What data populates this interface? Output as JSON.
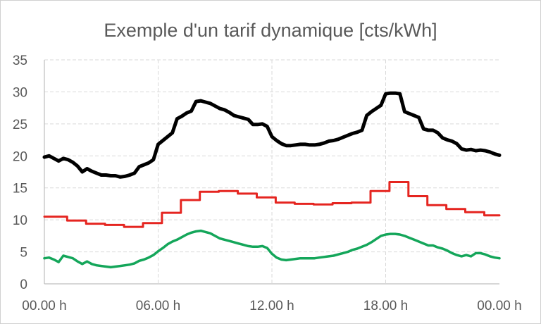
{
  "chart_data": {
    "type": "line",
    "title": "Exemple d'un tarif dynamique [cts/kWh]",
    "xlabel": "",
    "ylabel": "",
    "ylim": [
      0,
      35
    ],
    "xlim": [
      0,
      24
    ],
    "y_ticks": [
      "0",
      "5",
      "10",
      "15",
      "20",
      "25",
      "30",
      "35"
    ],
    "x_ticks": [
      {
        "x": 0,
        "label": "00.00 h"
      },
      {
        "x": 6,
        "label": "06.00 h"
      },
      {
        "x": 12,
        "label": "12.00 h"
      },
      {
        "x": 18,
        "label": "18.00 h"
      },
      {
        "x": 24,
        "label": "00.00 h"
      }
    ],
    "grid": true,
    "legend": "none",
    "series": [
      {
        "color": "#000000",
        "width": 5,
        "x": [
          0,
          0.25,
          0.5,
          0.75,
          1,
          1.25,
          1.5,
          1.75,
          2,
          2.25,
          2.5,
          2.75,
          3,
          3.25,
          3.5,
          3.75,
          4,
          4.25,
          4.5,
          4.75,
          5,
          5.25,
          5.5,
          5.75,
          6,
          6.25,
          6.5,
          6.75,
          7,
          7.25,
          7.5,
          7.75,
          8,
          8.25,
          8.5,
          8.75,
          9,
          9.25,
          9.5,
          9.75,
          10,
          10.25,
          10.5,
          10.75,
          11,
          11.25,
          11.5,
          11.75,
          12,
          12.25,
          12.5,
          12.75,
          13,
          13.25,
          13.5,
          13.75,
          14,
          14.25,
          14.5,
          14.75,
          15,
          15.25,
          15.5,
          15.75,
          16,
          16.25,
          16.5,
          16.75,
          17,
          17.25,
          17.5,
          17.75,
          18,
          18.25,
          18.5,
          18.75,
          19,
          19.25,
          19.5,
          19.75,
          20,
          20.25,
          20.5,
          20.75,
          21,
          21.25,
          21.5,
          21.75,
          22,
          22.25,
          22.5,
          22.75,
          23,
          23.25,
          23.5,
          23.75,
          24
        ],
        "y": [
          19.8,
          20.0,
          19.6,
          19.2,
          19.6,
          19.4,
          19.0,
          18.4,
          17.5,
          18.0,
          17.6,
          17.3,
          17.0,
          17.0,
          16.9,
          16.9,
          16.7,
          16.8,
          17.0,
          17.3,
          18.3,
          18.6,
          18.9,
          19.4,
          21.8,
          22.4,
          23.0,
          23.6,
          25.8,
          26.2,
          26.7,
          27.0,
          28.5,
          28.6,
          28.4,
          28.2,
          27.8,
          27.4,
          27.2,
          26.8,
          26.3,
          26.1,
          25.9,
          25.7,
          24.9,
          24.9,
          25.0,
          24.6,
          23.0,
          22.4,
          21.9,
          21.6,
          21.6,
          21.7,
          21.8,
          21.8,
          21.7,
          21.7,
          21.8,
          22.0,
          22.3,
          22.4,
          22.6,
          22.9,
          23.2,
          23.5,
          23.7,
          24.0,
          26.3,
          26.9,
          27.4,
          27.9,
          29.7,
          29.8,
          29.8,
          29.7,
          26.9,
          26.6,
          26.3,
          26.0,
          24.2,
          24.0,
          24.0,
          23.6,
          22.8,
          22.5,
          22.3,
          21.9,
          21.1,
          20.9,
          21.0,
          20.8,
          20.9,
          20.8,
          20.6,
          20.3,
          20.1
        ]
      },
      {
        "color": "#e52520",
        "width": 3,
        "x": [
          0,
          1.2,
          1.2,
          2.2,
          2.2,
          3.2,
          3.2,
          4.2,
          4.2,
          5.2,
          5.2,
          6.2,
          6.2,
          7.2,
          7.2,
          8.2,
          8.2,
          9.2,
          9.2,
          10.2,
          10.2,
          11.2,
          11.2,
          12.2,
          12.2,
          13.2,
          13.2,
          14.2,
          14.2,
          15.2,
          15.2,
          16.2,
          16.2,
          17.2,
          17.2,
          18.2,
          18.2,
          19.2,
          19.2,
          20.2,
          20.2,
          21.2,
          21.2,
          22.2,
          22.2,
          23.2,
          23.2,
          24
        ],
        "y": [
          10.5,
          10.5,
          9.9,
          9.9,
          9.4,
          9.4,
          9.2,
          9.2,
          8.9,
          8.9,
          9.5,
          9.5,
          11.1,
          11.1,
          13.1,
          13.1,
          14.4,
          14.4,
          14.5,
          14.5,
          14.1,
          14.1,
          13.5,
          13.5,
          12.7,
          12.7,
          12.5,
          12.5,
          12.4,
          12.4,
          12.6,
          12.6,
          12.7,
          12.7,
          14.5,
          14.5,
          15.9,
          15.9,
          13.7,
          13.7,
          12.3,
          12.3,
          11.7,
          11.7,
          11.2,
          11.2,
          10.7,
          10.7
        ]
      },
      {
        "color": "#14a65a",
        "width": 3.5,
        "x": [
          0,
          0.25,
          0.5,
          0.75,
          1,
          1.25,
          1.5,
          1.75,
          2,
          2.25,
          2.5,
          2.75,
          3,
          3.25,
          3.5,
          3.75,
          4,
          4.25,
          4.5,
          4.75,
          5,
          5.25,
          5.5,
          5.75,
          6,
          6.25,
          6.5,
          6.75,
          7,
          7.25,
          7.5,
          7.75,
          8,
          8.25,
          8.5,
          8.75,
          9,
          9.25,
          9.5,
          9.75,
          10,
          10.25,
          10.5,
          10.75,
          11,
          11.25,
          11.5,
          11.75,
          12,
          12.25,
          12.5,
          12.75,
          13,
          13.25,
          13.5,
          13.75,
          14,
          14.25,
          14.5,
          14.75,
          15,
          15.25,
          15.5,
          15.75,
          16,
          16.25,
          16.5,
          16.75,
          17,
          17.25,
          17.5,
          17.75,
          18,
          18.25,
          18.5,
          18.75,
          19,
          19.25,
          19.5,
          19.75,
          20,
          20.25,
          20.5,
          20.75,
          21,
          21.25,
          21.5,
          21.75,
          22,
          22.25,
          22.5,
          22.75,
          23,
          23.25,
          23.5,
          23.75,
          24
        ],
        "y": [
          4.0,
          4.1,
          3.8,
          3.4,
          4.4,
          4.2,
          4.0,
          3.5,
          3.1,
          3.5,
          3.1,
          2.9,
          2.8,
          2.7,
          2.6,
          2.7,
          2.8,
          2.9,
          3.0,
          3.2,
          3.6,
          3.8,
          4.1,
          4.5,
          5.1,
          5.6,
          6.2,
          6.6,
          6.9,
          7.3,
          7.7,
          8.0,
          8.2,
          8.3,
          8.1,
          7.9,
          7.5,
          7.1,
          6.9,
          6.7,
          6.5,
          6.3,
          6.1,
          5.9,
          5.8,
          5.8,
          5.9,
          5.6,
          4.7,
          4.1,
          3.8,
          3.7,
          3.8,
          3.9,
          4.0,
          4.0,
          4.0,
          4.0,
          4.1,
          4.2,
          4.3,
          4.4,
          4.6,
          4.8,
          5.0,
          5.3,
          5.5,
          5.8,
          6.1,
          6.5,
          7.0,
          7.5,
          7.7,
          7.8,
          7.8,
          7.7,
          7.5,
          7.2,
          6.9,
          6.6,
          6.3,
          6.0,
          6.0,
          5.7,
          5.5,
          5.2,
          4.8,
          4.5,
          4.3,
          4.5,
          4.3,
          4.8,
          4.8,
          4.6,
          4.3,
          4.1,
          4.0
        ]
      }
    ]
  }
}
